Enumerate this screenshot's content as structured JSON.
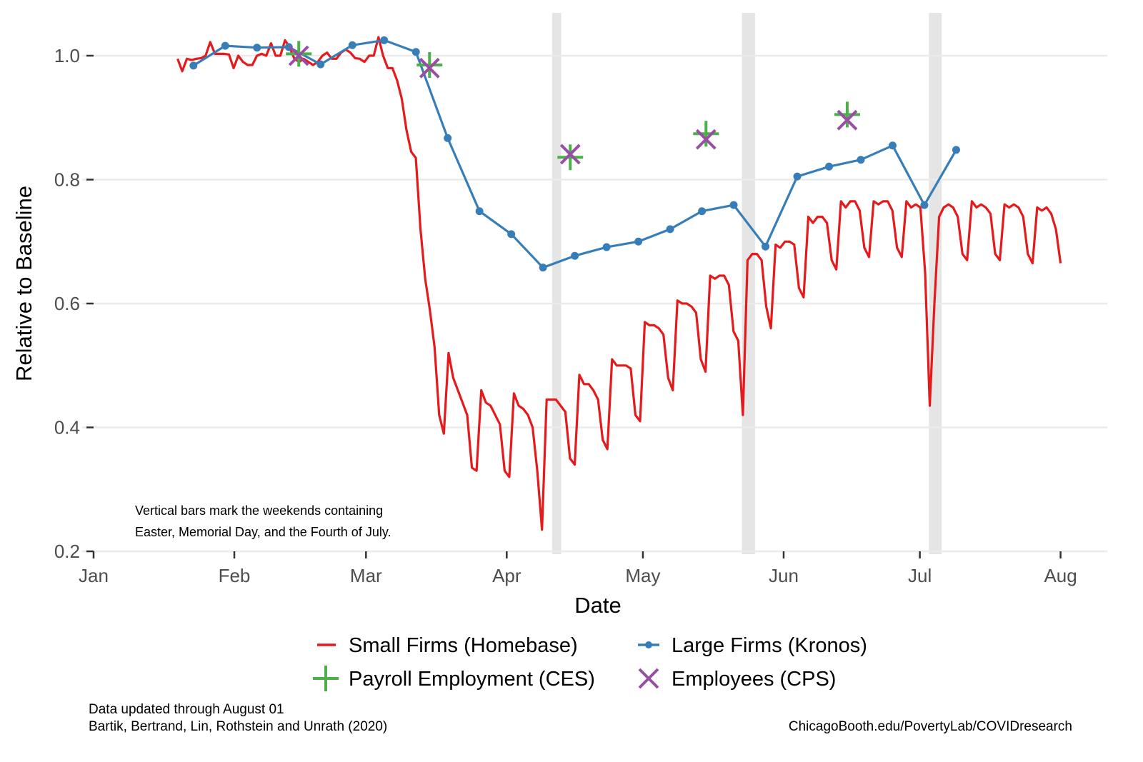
{
  "chart_data": {
    "type": "line",
    "xlabel": "Date",
    "ylabel": "Relative to Baseline",
    "ylim": [
      0.185,
      1.06
    ],
    "xlim": [
      "2020-01-01",
      "2020-08-01"
    ],
    "yticks": [
      0.2,
      0.4,
      0.6,
      0.8,
      1.0
    ],
    "ytick_labels": [
      "0.2",
      "0.4",
      "0.6",
      "0.8",
      "1.0"
    ],
    "xticks": [
      {
        "day": 0,
        "label": "Jan"
      },
      {
        "day": 31,
        "label": "Feb"
      },
      {
        "day": 60,
        "label": "Mar"
      },
      {
        "day": 91,
        "label": "Apr"
      },
      {
        "day": 121,
        "label": "May"
      },
      {
        "day": 152,
        "label": "Jun"
      },
      {
        "day": 182,
        "label": "Jul"
      },
      {
        "day": 213,
        "label": "Aug"
      }
    ],
    "grid": true,
    "shaded_weekends": [
      {
        "name": "Easter",
        "start_day": 101,
        "end_day": 103
      },
      {
        "name": "Memorial Day",
        "start_day": 142.8,
        "end_day": 145.7
      },
      {
        "name": "Fourth of July",
        "start_day": 184,
        "end_day": 186.8
      }
    ],
    "annotation": [
      "Vertical bars mark the weekends containing",
      "Easter, Memorial Day, and the Fourth of July."
    ],
    "series": [
      {
        "name": "Small Firms (Homebase)",
        "color": "#e41a1c",
        "marker": "dash",
        "start_day": 18.5,
        "end_day": 213,
        "values": [
          0.995,
          0.975,
          0.995,
          0.993,
          0.995,
          0.996,
          1.0,
          1.022,
          1.003,
          1.003,
          1.003,
          1.002,
          0.98,
          1.0,
          0.99,
          0.985,
          0.985,
          1.0,
          1.003,
          1.0,
          1.02,
          1.0,
          1.0,
          1.025,
          1.013,
          0.995,
          0.99,
          0.995,
          0.99,
          0.985,
          0.99,
          1.0,
          1.005,
          0.995,
          0.995,
          1.005,
          1.01,
          1.005,
          0.996,
          0.995,
          0.99,
          1.0,
          1.0,
          1.03,
          1.0,
          0.98,
          0.98,
          0.96,
          0.93,
          0.88,
          0.845,
          0.835,
          0.72,
          0.64,
          0.59,
          0.53,
          0.42,
          0.39,
          0.52,
          0.48,
          0.46,
          0.44,
          0.42,
          0.335,
          0.33,
          0.46,
          0.44,
          0.435,
          0.42,
          0.405,
          0.33,
          0.32,
          0.455,
          0.435,
          0.43,
          0.42,
          0.4,
          0.33,
          0.235,
          0.445,
          0.445,
          0.445,
          0.435,
          0.425,
          0.35,
          0.34,
          0.485,
          0.47,
          0.47,
          0.46,
          0.445,
          0.38,
          0.365,
          0.51,
          0.5,
          0.5,
          0.5,
          0.495,
          0.42,
          0.41,
          0.57,
          0.565,
          0.565,
          0.56,
          0.55,
          0.48,
          0.46,
          0.605,
          0.6,
          0.6,
          0.595,
          0.585,
          0.51,
          0.49,
          0.645,
          0.64,
          0.645,
          0.645,
          0.63,
          0.555,
          0.54,
          0.42,
          0.67,
          0.68,
          0.68,
          0.67,
          0.595,
          0.56,
          0.695,
          0.69,
          0.7,
          0.7,
          0.695,
          0.625,
          0.61,
          0.74,
          0.73,
          0.74,
          0.74,
          0.73,
          0.67,
          0.655,
          0.765,
          0.755,
          0.765,
          0.765,
          0.75,
          0.69,
          0.675,
          0.765,
          0.76,
          0.765,
          0.765,
          0.75,
          0.69,
          0.675,
          0.765,
          0.755,
          0.76,
          0.755,
          0.65,
          0.435,
          0.6,
          0.74,
          0.755,
          0.76,
          0.755,
          0.74,
          0.68,
          0.67,
          0.765,
          0.755,
          0.76,
          0.755,
          0.745,
          0.68,
          0.67,
          0.76,
          0.755,
          0.76,
          0.755,
          0.74,
          0.68,
          0.665,
          0.755,
          0.75,
          0.755,
          0.745,
          0.72,
          0.665
        ]
      },
      {
        "name": "Large Firms (Kronos)",
        "color": "#377eb8",
        "marker": "dot",
        "days": [
          22,
          29,
          36,
          43,
          50,
          57,
          64,
          71,
          78,
          85,
          92,
          99,
          106,
          113,
          120,
          127,
          134,
          141,
          148,
          155,
          162,
          169,
          176,
          183,
          190
        ],
        "values": [
          0.984,
          1.016,
          1.013,
          1.014,
          0.986,
          1.017,
          1.025,
          1.006,
          0.867,
          0.749,
          0.712,
          0.658,
          0.677,
          0.691,
          0.7,
          0.72,
          0.749,
          0.759,
          0.692,
          0.805,
          0.821,
          0.832,
          0.855,
          0.759,
          0.848
        ]
      },
      {
        "name": "Payroll Employment (CES)",
        "color": "#4daf4a",
        "marker": "plus",
        "days": [
          45.2,
          74,
          105.0,
          134.9,
          166.0
        ],
        "values": [
          1.003,
          0.985,
          0.836,
          0.874,
          0.905
        ]
      },
      {
        "name": "Employees (CPS)",
        "color": "#984ea3",
        "marker": "x",
        "days": [
          45.2,
          74,
          105.0,
          134.9,
          166.0
        ],
        "values": [
          1.0,
          0.98,
          0.841,
          0.865,
          0.896
        ]
      }
    ],
    "legend_position": "bottom"
  },
  "footer": {
    "updated": "Data updated through August 01",
    "authors": "Bartik, Bertrand, Lin, Rothstein and Unrath (2020)",
    "url": "ChicagoBooth.edu/PovertyLab/COVIDresearch"
  }
}
